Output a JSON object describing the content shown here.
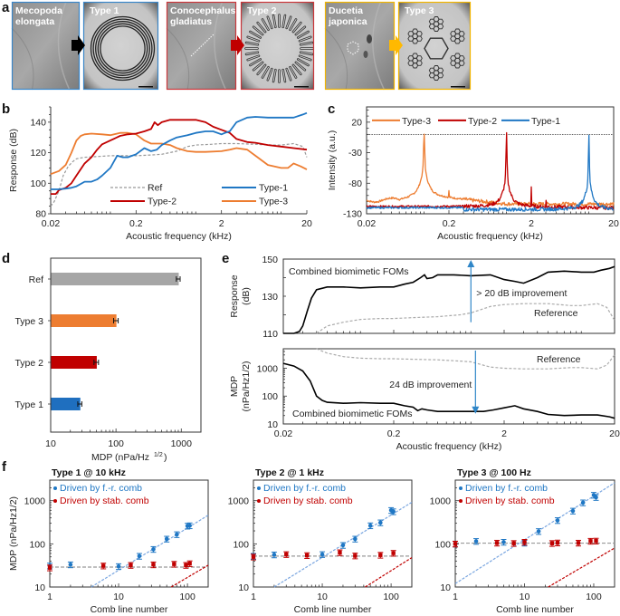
{
  "figure": {
    "panel_labels": [
      "a",
      "b",
      "c",
      "d",
      "e",
      "f"
    ]
  },
  "panel_a": {
    "images": [
      {
        "label": "Mecopoda elongata",
        "lines": [
          "Mecopoda",
          "elongata"
        ],
        "border": "#3a86c8",
        "kind": "insect"
      },
      {
        "label": "Type 1",
        "lines": [
          "Type 1"
        ],
        "border": "#3a86c8",
        "kind": "type1"
      },
      {
        "label": "Conocephalus gladiatus",
        "lines": [
          "Conocephalus",
          "gladiatus"
        ],
        "border": "#c9363a",
        "kind": "insect"
      },
      {
        "label": "Type 2",
        "lines": [
          "Type 2"
        ],
        "border": "#c9363a",
        "kind": "type2"
      },
      {
        "label": "Ducetia japonica",
        "lines": [
          "Ducetia",
          "japonica"
        ],
        "border": "#f0b400",
        "kind": "insect"
      },
      {
        "label": "Type 3",
        "lines": [
          "Type 3"
        ],
        "border": "#f0b400",
        "kind": "type3"
      }
    ],
    "arrows": [
      "#000000",
      "#c00000",
      "#ffb900"
    ]
  },
  "chart_data": [
    {
      "id": "b",
      "type": "line",
      "xscale": "log",
      "xlim": [
        0.02,
        20
      ],
      "ylim": [
        80,
        150
      ],
      "xticks": [
        "0.02",
        "0.2",
        "2",
        "20"
      ],
      "yticks": [
        "80",
        "100",
        "120",
        "140"
      ],
      "xlabel": "Acoustic frequency (kHz)",
      "ylabel": "Response (dB)",
      "legend": "bottom-right",
      "series": [
        {
          "name": "Ref",
          "color": "#999999",
          "dash": true,
          "x": [
            0.02,
            0.022,
            0.025,
            0.028,
            0.032,
            0.036,
            0.04,
            0.05,
            0.07,
            0.1,
            0.15,
            0.2,
            0.3,
            0.4,
            0.6,
            0.8,
            1,
            1.5,
            2,
            3,
            5,
            8,
            10,
            14,
            18,
            20
          ],
          "y": [
            85,
            88,
            95,
            105,
            111,
            114,
            116,
            117,
            117.5,
            118,
            118,
            118,
            118.5,
            119,
            121,
            124,
            125,
            125.5,
            126,
            126,
            125.5,
            125,
            125,
            126,
            124,
            117
          ]
        },
        {
          "name": "Type-1",
          "color": "#1f77c4",
          "x": [
            0.02,
            0.025,
            0.03,
            0.035,
            0.04,
            0.05,
            0.06,
            0.07,
            0.08,
            0.1,
            0.12,
            0.14,
            0.16,
            0.18,
            0.2,
            0.25,
            0.3,
            0.35,
            0.4,
            0.5,
            0.6,
            0.8,
            1,
            1.3,
            1.6,
            2,
            2.2,
            2.5,
            3,
            4,
            5,
            7,
            10,
            14,
            18,
            20
          ],
          "y": [
            96,
            96,
            96.5,
            97,
            98,
            101,
            101,
            102.5,
            105,
            110,
            118,
            117,
            117,
            118,
            119,
            123,
            121,
            122,
            125,
            128,
            130,
            131.5,
            133,
            134,
            134,
            132,
            133,
            134,
            140,
            143,
            143.5,
            143,
            143,
            143,
            145,
            146
          ]
        },
        {
          "name": "Type-2",
          "color": "#c00000",
          "x": [
            0.02,
            0.023,
            0.025,
            0.03,
            0.035,
            0.04,
            0.05,
            0.06,
            0.07,
            0.08,
            0.1,
            0.13,
            0.16,
            0.2,
            0.25,
            0.3,
            0.33,
            0.36,
            0.4,
            0.5,
            0.7,
            1,
            1.3,
            1.6,
            2,
            2.5,
            3,
            4,
            5,
            7,
            10,
            14,
            20
          ],
          "y": [
            93,
            93,
            95.5,
            97,
            100,
            105,
            113,
            117,
            122,
            125.5,
            128,
            131,
            132,
            132.5,
            134,
            135.5,
            140,
            138,
            140,
            141.5,
            141.5,
            141.5,
            140,
            137,
            135,
            133,
            129,
            127,
            126.5,
            125,
            124,
            123,
            122
          ]
        },
        {
          "name": "Type-3",
          "color": "#ed7d31",
          "x": [
            0.02,
            0.025,
            0.03,
            0.035,
            0.04,
            0.045,
            0.05,
            0.06,
            0.08,
            0.1,
            0.13,
            0.16,
            0.2,
            0.25,
            0.3,
            0.4,
            0.5,
            0.6,
            0.8,
            1,
            1.3,
            2,
            2.5,
            3,
            4,
            5,
            7,
            10,
            12,
            14,
            17,
            20
          ],
          "y": [
            106,
            108,
            112,
            120,
            128,
            131,
            132,
            132.5,
            132,
            131.5,
            133,
            133,
            132,
            128,
            126,
            126,
            125,
            123,
            121,
            120.5,
            120.5,
            121,
            122,
            123,
            122,
            118,
            112,
            110,
            110,
            113,
            111,
            109
          ]
        }
      ]
    },
    {
      "id": "c",
      "type": "line",
      "xscale": "log",
      "xlim": [
        0.02,
        20
      ],
      "ylim": [
        -130,
        45
      ],
      "xticks": [
        "0.02",
        "0.2",
        "2",
        "20"
      ],
      "yticks": [
        "-130",
        "-80",
        "-30",
        "20"
      ],
      "xlabel": "Acoustic frequency (kHz)",
      "ylabel": "Intensity (a.u.)",
      "reference_line": 0,
      "legend": "top",
      "series": [
        {
          "name": "Type-3",
          "color": "#ed7d31",
          "peak_khz": 0.1,
          "baseline": -110,
          "noise_floor_hf": -115
        },
        {
          "name": "Type-2",
          "color": "#c00000",
          "peak_khz": 1,
          "baseline": -118,
          "noise_floor_hf": -118
        },
        {
          "name": "Type-1",
          "color": "#1f77c4",
          "peak_khz": 10,
          "baseline": -120,
          "noise_floor_hf": -123
        }
      ]
    },
    {
      "id": "d",
      "type": "bar",
      "orientation": "horizontal",
      "xscale": "log",
      "xlim": [
        10,
        2000
      ],
      "xticks": [
        "10",
        "100",
        "1000"
      ],
      "xlabel": "MDP (nPa/Hz",
      "xlabel_sup": "1/2",
      "categories": [
        "Ref",
        "Type 3",
        "Type 2",
        "Type 1"
      ],
      "values": [
        900,
        100,
        50,
        28
      ],
      "errors": [
        60,
        8,
        4,
        2
      ],
      "colors": [
        "#a6a6a6",
        "#ed7d31",
        "#c00000",
        "#1f6fbf"
      ]
    },
    {
      "id": "e_top",
      "type": "line",
      "xscale": "log",
      "xlim": [
        0.02,
        20
      ],
      "ylim": [
        110,
        150
      ],
      "yticks": [
        "110",
        "130",
        "150"
      ],
      "ylabel_lines": [
        "Response",
        "(dB)"
      ],
      "annotation": "> 20 dB improvement",
      "annotation_color": "#2f86c8",
      "arrow_at_khz": 1,
      "arrow_from": 116,
      "arrow_to": 149,
      "series": [
        {
          "name": "Combined biomimetic FOMs",
          "color": "#000000",
          "x": [
            0.02,
            0.025,
            0.028,
            0.03,
            0.033,
            0.036,
            0.04,
            0.05,
            0.07,
            0.1,
            0.15,
            0.2,
            0.25,
            0.3,
            0.35,
            0.38,
            0.4,
            0.45,
            0.5,
            0.7,
            1,
            1.5,
            2,
            2.5,
            3,
            4,
            5,
            7,
            10,
            13,
            15,
            18,
            20
          ],
          "y": [
            110,
            110,
            111,
            114,
            122,
            129,
            133.5,
            135,
            135,
            134.5,
            135,
            135,
            136.5,
            137.5,
            140,
            141.5,
            139.5,
            140,
            141.5,
            141.5,
            141,
            141.5,
            139,
            138,
            137,
            140,
            143,
            143.5,
            143,
            143,
            144,
            145,
            146
          ]
        },
        {
          "name": "Reference",
          "color": "#aaaaaa",
          "dash": true,
          "x": [
            0.04,
            0.05,
            0.07,
            0.1,
            0.15,
            0.2,
            0.3,
            0.5,
            0.8,
            1,
            1.5,
            2,
            3,
            5,
            8,
            10,
            14,
            17,
            20
          ],
          "y": [
            110,
            114,
            116,
            117.5,
            118,
            118,
            118.5,
            119,
            120,
            121,
            124.5,
            125.5,
            126,
            126,
            125,
            125,
            126,
            124,
            117
          ]
        }
      ]
    },
    {
      "id": "e_bottom",
      "type": "line",
      "xscale": "log",
      "xlim": [
        0.02,
        20
      ],
      "ylim": [
        10,
        5000
      ],
      "xticks": [
        "0.02",
        "0.2",
        "2",
        "20"
      ],
      "yticks": [
        "10",
        "100",
        "1000"
      ],
      "xlabel": "Acoustic frequency (kHz)",
      "ylabel_lines": [
        "MDP",
        "(nPa/Hz"
      ],
      "ylabel_sup": "1/2",
      "annotation": "24 dB improvement",
      "annotation_color": "#2f86c8",
      "arrow_at_khz": 1.1,
      "arrow_from": 5000,
      "arrow_to": 25,
      "series": [
        {
          "name": "Combined biomimetic FOMs",
          "color": "#000000",
          "x": [
            0.02,
            0.025,
            0.03,
            0.035,
            0.04,
            0.045,
            0.05,
            0.07,
            0.1,
            0.15,
            0.2,
            0.25,
            0.3,
            0.33,
            0.36,
            0.4,
            0.5,
            0.7,
            1,
            1.3,
            1.6,
            2,
            2.5,
            3,
            4,
            5,
            7,
            10,
            14,
            18,
            20
          ],
          "y": [
            1500,
            1200,
            800,
            350,
            100,
            70,
            60,
            55,
            58,
            55,
            55,
            45,
            40,
            30,
            35,
            32,
            28,
            28,
            28,
            28,
            32,
            38,
            45,
            35,
            28,
            22,
            20,
            21,
            21,
            18,
            16
          ]
        },
        {
          "name": "Reference",
          "color": "#aaaaaa",
          "dash": true,
          "x": [
            0.04,
            0.05,
            0.07,
            0.1,
            0.15,
            0.2,
            0.3,
            0.5,
            0.8,
            1,
            1.5,
            2,
            3,
            5,
            8,
            10,
            14,
            17,
            20
          ],
          "y": [
            5000,
            3500,
            2600,
            2300,
            2200,
            2200,
            2100,
            2000,
            1800,
            1700,
            1100,
            1000,
            950,
            950,
            1050,
            1050,
            950,
            1300,
            3000
          ]
        }
      ]
    },
    {
      "id": "f1",
      "type": "scatter",
      "title": "Type 1 @ 10 kHz",
      "xscale": "log",
      "yscale": "log",
      "xlim": [
        1,
        200
      ],
      "ylim": [
        10,
        3000
      ],
      "xticks": [
        "1",
        "10",
        "100"
      ],
      "yticks": [
        "10",
        "100",
        "1000"
      ],
      "xlabel": "Comb line number",
      "ylabel": "MDP (nPa/Hz",
      "ylabel_sup": "1/2",
      "hline": 29,
      "series": [
        {
          "name": "Driven by f.-r. comb",
          "color": "#1f77c4",
          "fit_color": "#7aa6e0",
          "x": [
            1,
            2,
            10,
            20,
            32,
            50,
            70,
            100,
            108
          ],
          "y": [
            31,
            33,
            30,
            52,
            75,
            130,
            165,
            260,
            265
          ],
          "fit": [
            [
              4,
              10
            ],
            [
              200,
              460
            ]
          ]
        },
        {
          "name": "Driven by stab. comb",
          "color": "#c00000",
          "fit_color": "#c00000",
          "x": [
            1,
            6,
            15,
            32,
            64,
            95,
            108
          ],
          "y": [
            28,
            31,
            32,
            33,
            34,
            32,
            35
          ],
          "fit": [
            [
              58,
              10
            ],
            [
              200,
              32
            ]
          ]
        }
      ]
    },
    {
      "id": "f2",
      "type": "scatter",
      "title": "Type 2 @ 1 kHz",
      "xscale": "log",
      "yscale": "log",
      "xlim": [
        1,
        200
      ],
      "ylim": [
        10,
        3000
      ],
      "xticks": [
        "1",
        "10",
        "100"
      ],
      "yticks": [
        "10",
        "100",
        "1000"
      ],
      "xlabel": "Comb line number",
      "hline": 52,
      "series": [
        {
          "name": "Driven by f.-r. comb",
          "color": "#1f77c4",
          "fit_color": "#7aa6e0",
          "x": [
            1,
            2,
            10,
            20,
            30,
            50,
            70,
            100,
            108
          ],
          "y": [
            52,
            56,
            57,
            93,
            130,
            265,
            310,
            600,
            560
          ],
          "fit": [
            [
              2,
              10
            ],
            [
              200,
              920
            ]
          ]
        },
        {
          "name": "Driven by stab. comb",
          "color": "#c00000",
          "fit_color": "#c00000",
          "x": [
            1,
            3,
            6,
            18,
            30,
            70,
            108
          ],
          "y": [
            50,
            57,
            54,
            63,
            53,
            55,
            61
          ],
          "fit": [
            [
              42,
              10
            ],
            [
              200,
              48
            ]
          ]
        }
      ]
    },
    {
      "id": "f3",
      "type": "scatter",
      "title": "Type 3 @ 100 Hz",
      "xscale": "log",
      "yscale": "log",
      "xlim": [
        1,
        200
      ],
      "ylim": [
        10,
        3000
      ],
      "xticks": [
        "1",
        "10",
        "100"
      ],
      "yticks": [
        "10",
        "100",
        "1000"
      ],
      "xlabel": "Comb line number",
      "hline": 104,
      "series": [
        {
          "name": "Driven by f.-r. comb",
          "color": "#1f77c4",
          "fit_color": "#7aa6e0",
          "x": [
            1,
            2,
            5,
            10,
            16,
            30,
            50,
            70,
            100,
            108
          ],
          "y": [
            100,
            115,
            110,
            105,
            195,
            350,
            580,
            900,
            1350,
            1200
          ],
          "fit": [
            [
              1,
              12
            ],
            [
              200,
              2600
            ]
          ]
        },
        {
          "name": "Driven by stab. comb",
          "color": "#c00000",
          "fit_color": "#c00000",
          "x": [
            1,
            4,
            7,
            10,
            25,
            30,
            60,
            90,
            108
          ],
          "y": [
            100,
            105,
            103,
            110,
            103,
            106,
            105,
            116,
            117
          ],
          "fit": [
            [
              22,
              10
            ],
            [
              200,
              80
            ]
          ]
        }
      ]
    }
  ]
}
